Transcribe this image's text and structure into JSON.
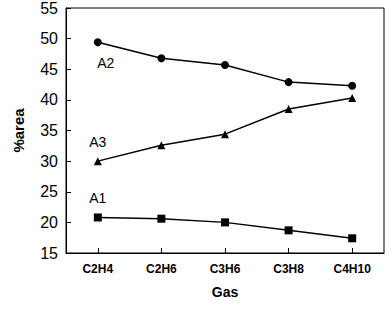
{
  "chart_data": {
    "type": "line",
    "x_label": "Gas",
    "y_label": "%area",
    "categories": [
      "C2H4",
      "C2H6",
      "C3H6",
      "C3H8",
      "C4H10"
    ],
    "series": [
      {
        "name": "A2",
        "color": "#000000",
        "marker": "circle",
        "values": [
          49.4,
          46.8,
          45.7,
          42.9,
          42.3
        ]
      },
      {
        "name": "A3",
        "color": "#000000",
        "marker": "triangle",
        "values": [
          30.0,
          32.6,
          34.4,
          38.5,
          40.3
        ]
      },
      {
        "name": "A1",
        "color": "#000000",
        "marker": "rect",
        "values": [
          20.8,
          20.6,
          20.0,
          18.7,
          17.4
        ]
      }
    ],
    "ylim": [
      15,
      55
    ],
    "yticks": [
      15,
      20,
      25,
      30,
      35,
      40,
      45,
      50,
      55
    ],
    "grid": false
  }
}
